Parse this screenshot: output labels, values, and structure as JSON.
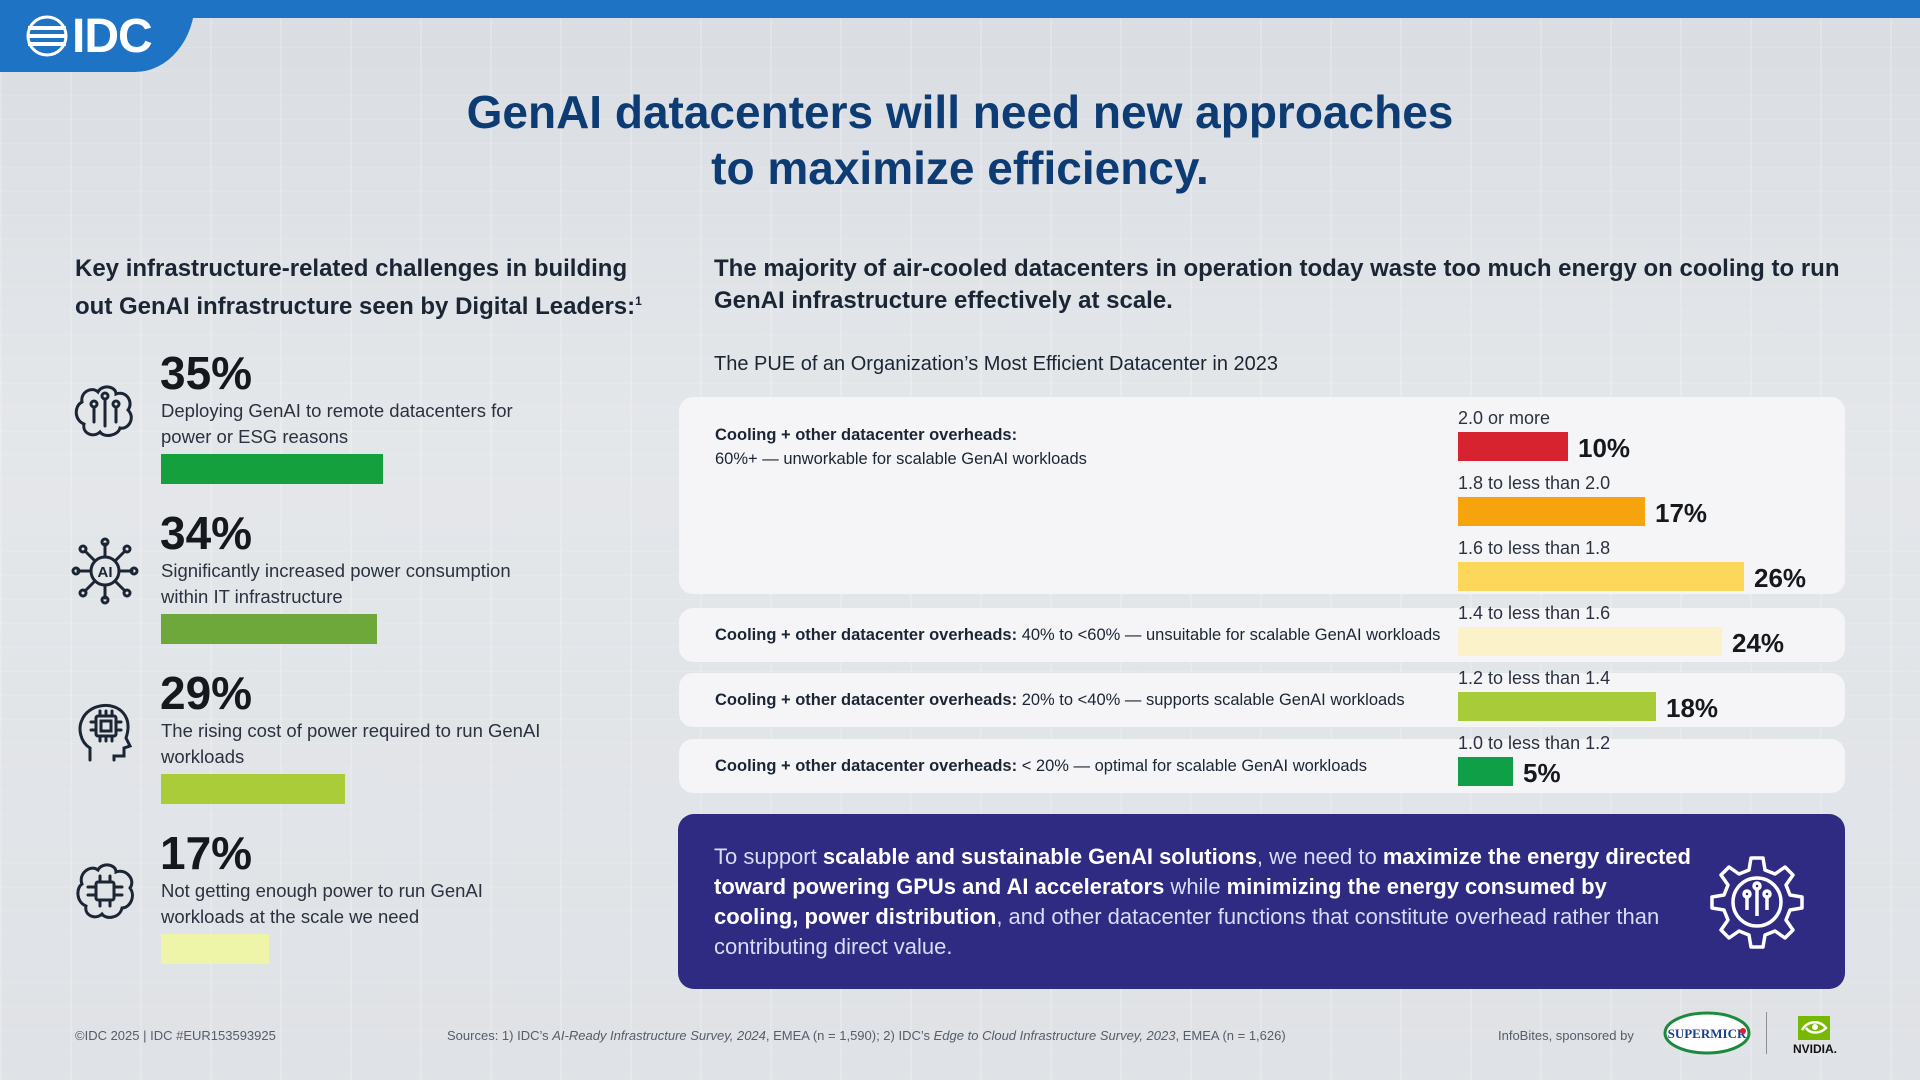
{
  "header": {
    "logo_text": "IDC",
    "title_line1": "GenAI datacenters will need new approaches",
    "title_line2": "to maximize efficiency."
  },
  "left": {
    "heading_line1": "Key infrastructure-related challenges in building",
    "heading_line2": "out GenAI infrastructure seen by Digital Leaders:",
    "heading_sup": "1",
    "stats": [
      {
        "pct": "35%",
        "value": 35,
        "desc": "Deploying GenAI to remote datacenters for power or ESG reasons",
        "color": "#14a03c",
        "icon": "brain-network-icon"
      },
      {
        "pct": "34%",
        "value": 34,
        "desc": "Significantly increased power consumption within IT infrastructure",
        "color": "#6ea83a",
        "icon": "ai-chip-icon"
      },
      {
        "pct": "29%",
        "value": 29,
        "desc": "The rising cost of power required to run GenAI workloads",
        "color": "#a9cc38",
        "icon": "head-chip-icon"
      },
      {
        "pct": "17%",
        "value": 17,
        "desc": "Not getting enough power to run GenAI workloads at the scale we need",
        "color": "#eef4a8",
        "icon": "brain-circuit-icon"
      }
    ]
  },
  "right": {
    "heading": "The majority of air-cooled datacenters in operation today waste too much energy on cooling to run GenAI infrastructure effectively at scale.",
    "panels": [
      {
        "label": "Cooling + other datacenter overheads:",
        "text": "60%+ — unworkable for scalable GenAI workloads"
      },
      {
        "label": "Cooling + other datacenter overheads:",
        "text": " 40% to <60% — unsuitable for scalable GenAI workloads"
      },
      {
        "label": "Cooling + other datacenter overheads:",
        "text": " 20% to <40% — supports scalable GenAI workloads"
      },
      {
        "label": "Cooling + other datacenter overheads:",
        "text": " < 20% — optimal for scalable GenAI workloads"
      }
    ]
  },
  "chart_data": {
    "type": "bar",
    "orientation": "horizontal",
    "title": "The PUE of an Organization’s Most Efficient Datacenter in 2023",
    "categories": [
      "2.0 or more",
      "1.8 to less than 2.0",
      "1.6 to less than 1.8",
      "1.4 to less than 1.6",
      "1.2 to less than 1.4",
      "1.0 to less than 1.2"
    ],
    "values": [
      10,
      17,
      26,
      24,
      18,
      5
    ],
    "value_labels": [
      "10%",
      "17%",
      "26%",
      "24%",
      "18%",
      "5%"
    ],
    "colors": [
      "#d7232f",
      "#f7a30d",
      "#fdd75a",
      "#fcf2c9",
      "#a8cb3a",
      "#0e9f47"
    ],
    "xlim": [
      0,
      26
    ],
    "unit": "%"
  },
  "callout": {
    "t1": "To support ",
    "b1": "scalable and sustainable GenAI solutions",
    "t2": ", we need to ",
    "b2": "maximize the energy directed toward powering GPUs and AI accelerators",
    "t3": " while ",
    "b3": "minimizing the energy consumed by cooling, power distribution",
    "t4": ", and other datacenter functions that constitute overhead rather than contributing direct value."
  },
  "footer": {
    "copyright": "©IDC 2025  |  IDC #EUR153593925",
    "src_1": "Sources: 1) IDC’s ",
    "src_2": "AI-Ready Infrastructure Survey, 2024",
    "src_3": ", EMEA (n = 1,590); 2) IDC’s ",
    "src_4": "Edge to Cloud Infrastructure Survey, 2023",
    "src_5": ", EMEA (n = 1,626)",
    "sponsored_by": "InfoBites, sponsored by",
    "sponsor1": "SUPERMICR",
    "sponsor2": "NVIDIA."
  }
}
